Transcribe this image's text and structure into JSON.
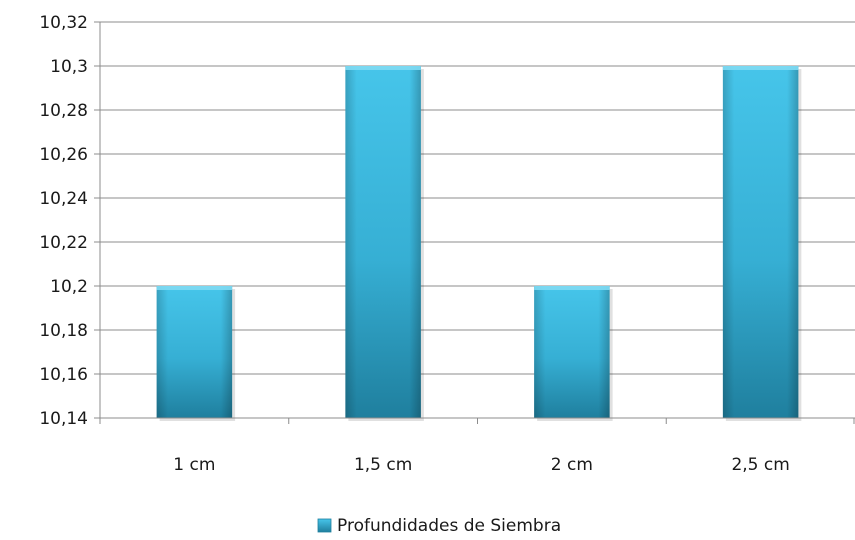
{
  "chart_data": {
    "type": "bar",
    "categories": [
      "1 cm",
      "1,5 cm",
      "2 cm",
      "2,5 cm"
    ],
    "series": [
      {
        "name": "Profundidades de Siembra",
        "values": [
          10.2,
          10.3,
          10.2,
          10.3
        ]
      }
    ],
    "ylim": [
      10.14,
      10.32
    ],
    "yticks": [
      "10,14",
      "10,16",
      "10,18",
      "10,2",
      "10,22",
      "10,24",
      "10,26",
      "10,28",
      "10,3",
      "10,32"
    ],
    "grid": true,
    "legend_position": "bottom",
    "colors": {
      "bar_light": "#46c5ea",
      "bar_mid": "#33a9cc",
      "bar_dark": "#1f7f9e"
    }
  }
}
